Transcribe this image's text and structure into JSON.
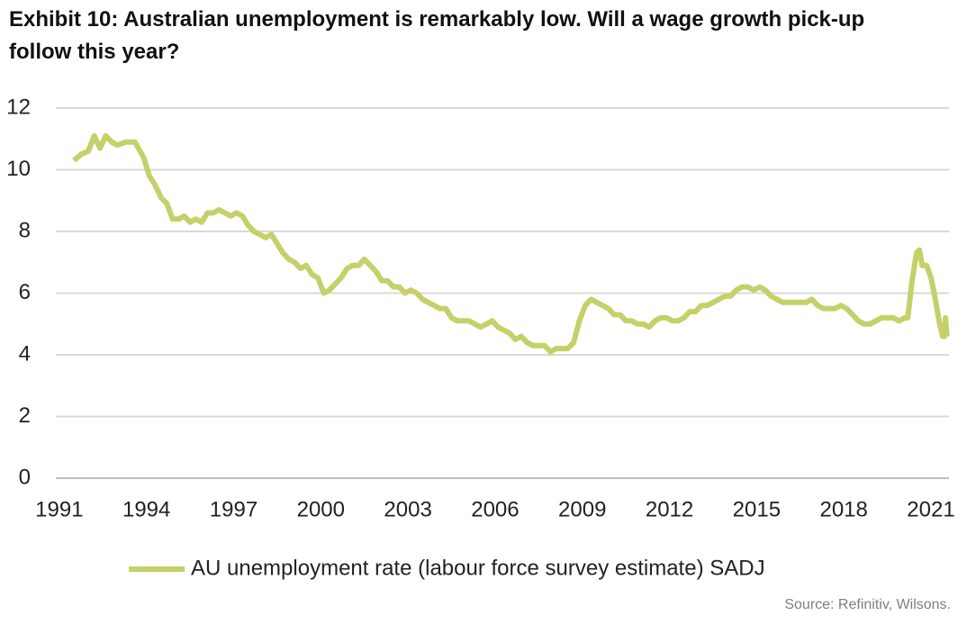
{
  "chart_data": {
    "type": "line",
    "title": "Exhibit 10: Australian unemployment is remarkably low. Will a wage growth pick-up follow this year?",
    "source": "Source: Refinitiv, Wilsons.",
    "xlim": [
      1990.88,
      2021.62
    ],
    "xticks": [
      1991,
      1994,
      1997,
      2000,
      2003,
      2006,
      2009,
      2012,
      2015,
      2018,
      2021
    ],
    "ylim": [
      0,
      12
    ],
    "yticks": [
      0,
      2,
      4,
      6,
      8,
      10,
      12
    ],
    "grid": true,
    "legend": "bottom",
    "x": [
      1991.5,
      1991.75,
      1992.0,
      1992.2,
      1992.4,
      1992.6,
      1992.8,
      1993.0,
      1993.3,
      1993.6,
      1993.9,
      1994.1,
      1994.3,
      1994.5,
      1994.7,
      1994.9,
      1995.1,
      1995.3,
      1995.5,
      1995.7,
      1995.9,
      1996.1,
      1996.3,
      1996.5,
      1996.7,
      1996.9,
      1997.1,
      1997.3,
      1997.5,
      1997.7,
      1997.9,
      1998.1,
      1998.3,
      1998.5,
      1998.7,
      1998.9,
      1999.1,
      1999.3,
      1999.5,
      1999.7,
      1999.9,
      2000.1,
      2000.3,
      2000.5,
      2000.7,
      2000.9,
      2001.1,
      2001.3,
      2001.5,
      2001.7,
      2001.9,
      2002.1,
      2002.3,
      2002.5,
      2002.7,
      2002.9,
      2003.1,
      2003.3,
      2003.5,
      2003.7,
      2003.9,
      2004.1,
      2004.3,
      2004.5,
      2004.7,
      2004.9,
      2005.1,
      2005.3,
      2005.5,
      2005.7,
      2005.9,
      2006.1,
      2006.3,
      2006.5,
      2006.7,
      2006.9,
      2007.1,
      2007.3,
      2007.5,
      2007.7,
      2007.9,
      2008.1,
      2008.3,
      2008.5,
      2008.7,
      2008.9,
      2009.1,
      2009.3,
      2009.5,
      2009.7,
      2009.9,
      2010.1,
      2010.3,
      2010.5,
      2010.7,
      2010.9,
      2011.1,
      2011.3,
      2011.5,
      2011.7,
      2011.9,
      2012.1,
      2012.3,
      2012.5,
      2012.7,
      2012.9,
      2013.1,
      2013.3,
      2013.5,
      2013.7,
      2013.9,
      2014.1,
      2014.3,
      2014.5,
      2014.7,
      2014.9,
      2015.1,
      2015.3,
      2015.5,
      2015.7,
      2015.9,
      2016.1,
      2016.3,
      2016.5,
      2016.7,
      2016.9,
      2017.1,
      2017.3,
      2017.5,
      2017.7,
      2017.9,
      2018.1,
      2018.3,
      2018.5,
      2018.7,
      2018.9,
      2019.1,
      2019.3,
      2019.5,
      2019.7,
      2019.9,
      2020.1,
      2020.2,
      2020.35,
      2020.5,
      2020.6,
      2020.7,
      2020.85,
      2021.0,
      2021.15,
      2021.3,
      2021.4,
      2021.47,
      2021.5,
      2021.55
    ],
    "series": [
      {
        "name": "AU unemployment rate (labour force survey estimate) SADJ",
        "color": "#c6d06a",
        "values": [
          10.3,
          10.5,
          10.6,
          11.1,
          10.7,
          11.1,
          10.9,
          10.8,
          10.9,
          10.9,
          10.4,
          9.8,
          9.5,
          9.1,
          8.9,
          8.4,
          8.4,
          8.5,
          8.3,
          8.4,
          8.3,
          8.6,
          8.6,
          8.7,
          8.6,
          8.5,
          8.6,
          8.5,
          8.2,
          8.0,
          7.9,
          7.8,
          7.9,
          7.6,
          7.3,
          7.1,
          7.0,
          6.8,
          6.9,
          6.6,
          6.5,
          6.0,
          6.1,
          6.3,
          6.5,
          6.8,
          6.9,
          6.9,
          7.1,
          6.9,
          6.7,
          6.4,
          6.4,
          6.2,
          6.2,
          6.0,
          6.1,
          6.0,
          5.8,
          5.7,
          5.6,
          5.5,
          5.5,
          5.2,
          5.1,
          5.1,
          5.1,
          5.0,
          4.9,
          5.0,
          5.1,
          4.9,
          4.8,
          4.7,
          4.5,
          4.6,
          4.4,
          4.3,
          4.3,
          4.3,
          4.1,
          4.2,
          4.2,
          4.2,
          4.4,
          5.1,
          5.6,
          5.8,
          5.7,
          5.6,
          5.5,
          5.3,
          5.3,
          5.1,
          5.1,
          5.0,
          5.0,
          4.9,
          5.1,
          5.2,
          5.2,
          5.1,
          5.1,
          5.2,
          5.4,
          5.4,
          5.6,
          5.6,
          5.7,
          5.8,
          5.9,
          5.9,
          6.1,
          6.2,
          6.2,
          6.1,
          6.2,
          6.1,
          5.9,
          5.8,
          5.7,
          5.7,
          5.7,
          5.7,
          5.7,
          5.8,
          5.6,
          5.5,
          5.5,
          5.5,
          5.6,
          5.5,
          5.3,
          5.1,
          5.0,
          5.0,
          5.1,
          5.2,
          5.2,
          5.2,
          5.1,
          5.2,
          5.2,
          6.4,
          7.3,
          7.4,
          6.9,
          6.9,
          6.5,
          5.8,
          5.0,
          4.6,
          4.6,
          5.2,
          4.6
        ]
      }
    ]
  }
}
